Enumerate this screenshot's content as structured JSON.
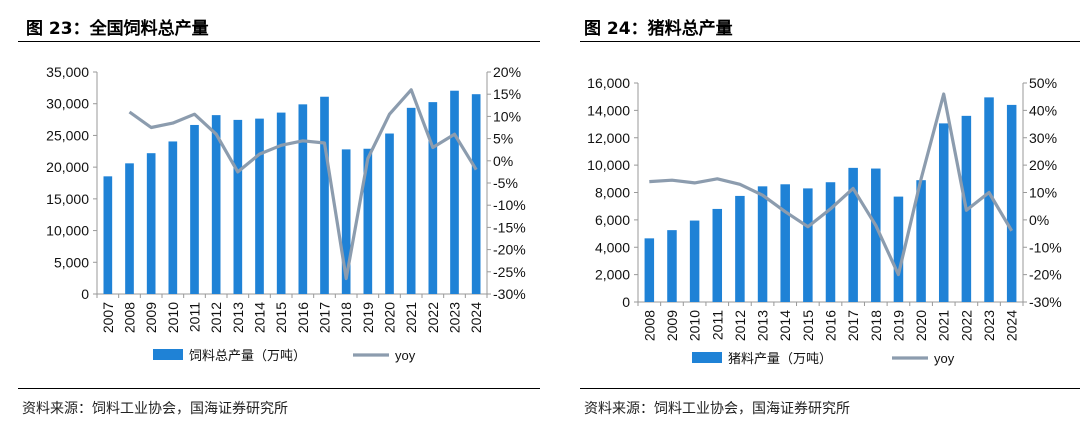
{
  "left": {
    "title": "图 23：全国饲料总产量",
    "source": "资料来源：饲料工业协会，国海证券研究所",
    "chart_data": {
      "type": "bar",
      "categories": [
        "2007",
        "2008",
        "2009",
        "2010",
        "2011",
        "2012",
        "2013",
        "2014",
        "2015",
        "2016",
        "2017",
        "2018",
        "2019",
        "2020",
        "2021",
        "2022",
        "2023",
        "2024"
      ],
      "series": [
        {
          "name": "饲料总产量（万吨）",
          "type": "bar",
          "axis": "left",
          "values": [
            18550,
            20600,
            22200,
            24050,
            26650,
            28200,
            27450,
            27650,
            28600,
            29900,
            31100,
            22800,
            22900,
            25300,
            29350,
            30250,
            32050,
            31500
          ]
        },
        {
          "name": "yoy",
          "type": "line",
          "axis": "right",
          "values": [
            null,
            11,
            7.5,
            8.5,
            10.5,
            6,
            -2.5,
            1.5,
            3.5,
            4.5,
            4,
            -26.5,
            0.5,
            10.5,
            16,
            3,
            6,
            -2
          ]
        }
      ],
      "left_ticks": [
        "0",
        "5,000",
        "10,000",
        "15,000",
        "20,000",
        "25,000",
        "30,000",
        "35,000"
      ],
      "right_ticks": [
        "-30%",
        "-25%",
        "-20%",
        "-15%",
        "-10%",
        "-5%",
        "0%",
        "5%",
        "10%",
        "15%",
        "20%"
      ],
      "ylim_left": [
        0,
        35000
      ],
      "ylim_right": [
        -30,
        20
      ],
      "bar_color": "#1f82d6",
      "line_color": "#8c9cae",
      "legend_position": "bottom"
    }
  },
  "right": {
    "title": "图 24：猪料总产量",
    "source": "资料来源：饲料工业协会，国海证券研究所",
    "chart_data": {
      "type": "bar",
      "categories": [
        "2008",
        "2009",
        "2010",
        "2011",
        "2012",
        "2013",
        "2014",
        "2015",
        "2016",
        "2017",
        "2018",
        "2019",
        "2020",
        "2021",
        "2022",
        "2023",
        "2024"
      ],
      "series": [
        {
          "name": "猪料产量（万吨）",
          "type": "bar",
          "axis": "left",
          "values": [
            4650,
            5250,
            5950,
            6800,
            7750,
            8450,
            8600,
            8300,
            8750,
            9800,
            9750,
            7700,
            8900,
            13050,
            13600,
            14950,
            14400
          ]
        },
        {
          "name": "yoy",
          "type": "line",
          "axis": "right",
          "values": [
            14,
            14.5,
            13.5,
            15,
            13,
            9,
            3,
            -2.5,
            4,
            11.5,
            -2,
            -20,
            15,
            46,
            3.5,
            10,
            -4
          ]
        }
      ],
      "left_ticks": [
        "0",
        "2,000",
        "4,000",
        "6,000",
        "8,000",
        "10,000",
        "12,000",
        "14,000",
        "16,000"
      ],
      "right_ticks": [
        "-30%",
        "-20%",
        "-10%",
        "0%",
        "10%",
        "20%",
        "30%",
        "40%",
        "50%"
      ],
      "ylim_left": [
        0,
        16000
      ],
      "ylim_right": [
        -30,
        50
      ],
      "bar_color": "#1f82d6",
      "line_color": "#8c9cae",
      "legend_position": "bottom"
    }
  }
}
